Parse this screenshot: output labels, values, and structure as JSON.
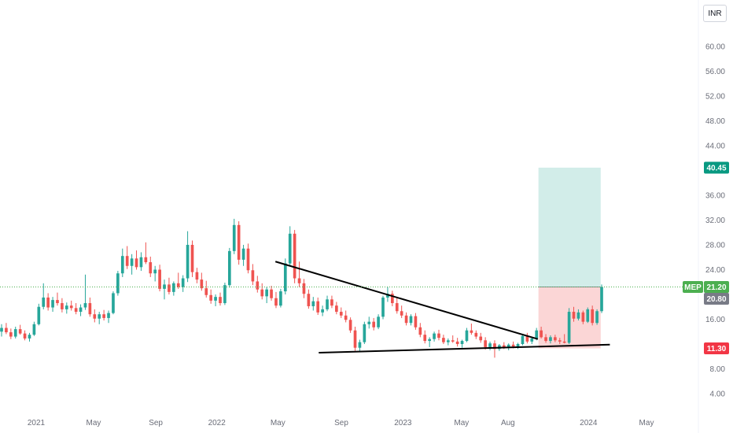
{
  "currency_label": "INR",
  "chart_data": {
    "type": "candlestick",
    "symbol": "MEP",
    "yticks": [
      60,
      56,
      52,
      48,
      44,
      36,
      32,
      28,
      24,
      16,
      8,
      4
    ],
    "ytick_labels": [
      "60.00",
      "56.00",
      "52.00",
      "48.00",
      "44.00",
      "36.00",
      "32.00",
      "28.00",
      "24.00",
      "16.00",
      "8.00",
      "4.00"
    ],
    "xticks": [
      {
        "label": "2021",
        "pos": 0.0
      },
      {
        "label": "May",
        "pos": 0.094
      },
      {
        "label": "Sep",
        "pos": 0.196
      },
      {
        "label": "2022",
        "pos": 0.296
      },
      {
        "label": "May",
        "pos": 0.396
      },
      {
        "label": "Sep",
        "pos": 0.5
      },
      {
        "label": "2023",
        "pos": 0.601
      },
      {
        "label": "May",
        "pos": 0.697
      },
      {
        "label": "Aug",
        "pos": 0.773
      },
      {
        "label": "2024",
        "pos": 0.905
      },
      {
        "label": "May",
        "pos": 1.0
      }
    ],
    "price_series": [
      [
        14.0,
        15.2,
        13.2,
        14.6
      ],
      [
        14.6,
        15.4,
        13.6,
        13.9
      ],
      [
        13.9,
        14.5,
        12.8,
        13.2
      ],
      [
        13.2,
        14.8,
        12.9,
        14.4
      ],
      [
        14.4,
        15.1,
        13.5,
        13.7
      ],
      [
        13.7,
        14.2,
        12.6,
        12.9
      ],
      [
        12.9,
        13.8,
        12.4,
        13.5
      ],
      [
        13.5,
        15.6,
        13.3,
        15.2
      ],
      [
        15.2,
        18.5,
        15.0,
        18.0
      ],
      [
        18.0,
        21.8,
        17.6,
        19.5
      ],
      [
        19.5,
        20.2,
        17.4,
        17.9
      ],
      [
        17.9,
        19.6,
        17.2,
        19.1
      ],
      [
        19.1,
        20.3,
        18.2,
        18.6
      ],
      [
        18.6,
        19.4,
        17.1,
        17.6
      ],
      [
        17.6,
        18.7,
        16.9,
        18.2
      ],
      [
        18.2,
        19.0,
        17.4,
        17.8
      ],
      [
        17.8,
        18.6,
        16.8,
        17.2
      ],
      [
        17.2,
        18.4,
        16.5,
        17.9
      ],
      [
        17.9,
        23.2,
        17.5,
        18.6
      ],
      [
        18.6,
        19.5,
        16.4,
        16.8
      ],
      [
        16.8,
        17.6,
        15.5,
        16.1
      ],
      [
        16.1,
        17.2,
        15.2,
        16.8
      ],
      [
        16.8,
        17.5,
        15.8,
        16.2
      ],
      [
        16.2,
        17.4,
        15.4,
        17.0
      ],
      [
        17.0,
        20.5,
        16.8,
        20.2
      ],
      [
        20.2,
        23.8,
        19.8,
        23.4
      ],
      [
        23.4,
        27.4,
        22.8,
        26.2
      ],
      [
        26.2,
        27.8,
        24.1,
        24.6
      ],
      [
        24.6,
        26.5,
        23.2,
        25.8
      ],
      [
        25.8,
        27.1,
        24.0,
        24.4
      ],
      [
        24.4,
        26.8,
        23.8,
        26.0
      ],
      [
        26.0,
        28.4,
        24.9,
        25.2
      ],
      [
        25.2,
        26.1,
        22.8,
        23.4
      ],
      [
        23.4,
        24.6,
        22.1,
        24.0
      ],
      [
        24.0,
        24.8,
        20.5,
        20.9
      ],
      [
        20.9,
        22.4,
        19.2,
        21.6
      ],
      [
        21.6,
        22.7,
        20.0,
        20.4
      ],
      [
        20.4,
        22.1,
        19.8,
        21.8
      ],
      [
        21.8,
        23.5,
        20.9,
        21.2
      ],
      [
        21.2,
        23.1,
        20.4,
        22.6
      ],
      [
        22.6,
        30.2,
        22.0,
        28.0
      ],
      [
        28.0,
        28.7,
        22.8,
        23.6
      ],
      [
        23.6,
        24.3,
        21.8,
        22.4
      ],
      [
        22.4,
        23.5,
        20.6,
        21.0
      ],
      [
        21.0,
        22.2,
        19.5,
        19.9
      ],
      [
        19.9,
        20.8,
        18.5,
        19.0
      ],
      [
        19.0,
        20.0,
        18.1,
        19.6
      ],
      [
        19.6,
        20.3,
        18.2,
        18.6
      ],
      [
        18.6,
        21.9,
        18.3,
        21.5
      ],
      [
        21.5,
        27.5,
        21.1,
        27.0
      ],
      [
        27.0,
        32.2,
        26.5,
        31.2
      ],
      [
        31.2,
        31.8,
        24.8,
        25.6
      ],
      [
        25.6,
        28.0,
        24.6,
        27.4
      ],
      [
        27.4,
        28.2,
        23.4,
        23.9
      ],
      [
        23.9,
        24.9,
        21.5,
        22.1
      ],
      [
        22.1,
        23.0,
        20.3,
        20.8
      ],
      [
        20.8,
        21.8,
        19.2,
        19.7
      ],
      [
        19.7,
        21.2,
        18.6,
        20.8
      ],
      [
        20.8,
        21.4,
        19.0,
        19.4
      ],
      [
        19.4,
        20.4,
        17.8,
        18.2
      ],
      [
        18.2,
        20.9,
        17.9,
        20.5
      ],
      [
        20.5,
        25.8,
        20.0,
        25.0
      ],
      [
        25.0,
        31.0,
        24.6,
        29.8
      ],
      [
        29.8,
        30.4,
        21.8,
        22.6
      ],
      [
        22.6,
        25.3,
        21.2,
        21.8
      ],
      [
        21.8,
        22.5,
        19.4,
        20.1
      ],
      [
        20.1,
        20.8,
        17.7,
        18.1
      ],
      [
        18.1,
        19.6,
        17.4,
        18.9
      ],
      [
        18.9,
        19.5,
        16.7,
        17.1
      ],
      [
        17.1,
        18.2,
        16.5,
        17.6
      ],
      [
        17.6,
        19.8,
        17.3,
        19.2
      ],
      [
        19.2,
        19.8,
        17.8,
        18.2
      ],
      [
        18.2,
        18.8,
        16.8,
        17.2
      ],
      [
        17.2,
        17.9,
        16.2,
        16.6
      ],
      [
        16.6,
        17.4,
        15.5,
        15.9
      ],
      [
        15.9,
        16.3,
        13.8,
        14.2
      ],
      [
        14.2,
        14.8,
        10.9,
        11.4
      ],
      [
        11.4,
        12.7,
        10.8,
        12.3
      ],
      [
        12.3,
        15.6,
        12.0,
        15.2
      ],
      [
        15.2,
        16.4,
        14.5,
        15.6
      ],
      [
        15.6,
        16.2,
        14.2,
        14.7
      ],
      [
        14.7,
        16.8,
        14.4,
        16.4
      ],
      [
        16.4,
        19.8,
        16.0,
        19.5
      ],
      [
        19.5,
        21.2,
        18.8,
        20.1
      ],
      [
        20.1,
        20.6,
        18.1,
        18.6
      ],
      [
        18.6,
        19.4,
        16.9,
        17.3
      ],
      [
        17.3,
        18.2,
        16.2,
        16.6
      ],
      [
        16.6,
        17.1,
        15.0,
        15.4
      ],
      [
        15.4,
        16.8,
        15.0,
        16.5
      ],
      [
        16.5,
        17.0,
        14.3,
        14.7
      ],
      [
        14.7,
        15.4,
        13.1,
        13.5
      ],
      [
        13.5,
        14.2,
        12.1,
        12.5
      ],
      [
        12.5,
        13.1,
        11.5,
        12.8
      ],
      [
        12.8,
        14.0,
        12.4,
        13.7
      ],
      [
        13.7,
        14.3,
        12.6,
        13.0
      ],
      [
        13.0,
        13.5,
        12.0,
        12.3
      ],
      [
        12.3,
        12.9,
        11.8,
        12.6
      ],
      [
        12.6,
        13.4,
        12.2,
        12.4
      ],
      [
        12.4,
        13.0,
        11.6,
        12.0
      ],
      [
        12.0,
        12.7,
        11.4,
        12.5
      ],
      [
        12.5,
        14.6,
        12.3,
        14.2
      ],
      [
        14.2,
        15.3,
        13.5,
        13.8
      ],
      [
        13.8,
        14.2,
        12.8,
        13.2
      ],
      [
        13.2,
        13.8,
        12.2,
        12.6
      ],
      [
        12.6,
        13.1,
        11.1,
        11.5
      ],
      [
        11.5,
        12.4,
        11.0,
        12.1
      ],
      [
        12.1,
        12.6,
        9.8,
        11.2
      ],
      [
        11.2,
        12.0,
        10.9,
        11.8
      ],
      [
        11.8,
        12.3,
        11.2,
        11.5
      ],
      [
        11.5,
        12.1,
        11.0,
        11.9
      ],
      [
        11.9,
        12.4,
        11.3,
        11.6
      ],
      [
        11.6,
        12.2,
        11.2,
        12.0
      ],
      [
        12.0,
        13.6,
        11.8,
        13.3
      ],
      [
        13.3,
        13.8,
        12.1,
        12.4
      ],
      [
        12.4,
        13.2,
        12.0,
        12.9
      ],
      [
        12.9,
        14.6,
        12.6,
        14.2
      ],
      [
        14.2,
        14.8,
        12.9,
        13.1
      ],
      [
        13.1,
        13.6,
        12.2,
        12.5
      ],
      [
        12.5,
        13.4,
        12.1,
        13.1
      ],
      [
        13.1,
        13.5,
        12.3,
        12.6
      ],
      [
        12.6,
        13.0,
        12.0,
        12.4
      ],
      [
        12.4,
        13.6,
        12.1,
        12.2
      ],
      [
        12.2,
        17.8,
        12.0,
        17.2
      ],
      [
        17.2,
        18.0,
        15.6,
        16.1
      ],
      [
        16.1,
        17.6,
        15.8,
        17.1
      ],
      [
        17.1,
        17.4,
        15.2,
        15.6
      ],
      [
        15.6,
        17.9,
        15.4,
        17.6
      ],
      [
        17.6,
        18.2,
        15.0,
        15.4
      ],
      [
        15.4,
        17.6,
        15.1,
        17.3
      ],
      [
        17.3,
        21.6,
        17.0,
        21.2
      ]
    ],
    "trendlines": [
      {
        "name": "upper-resistance",
        "from": {
          "x": 0.392,
          "y": 25.3
        },
        "to": {
          "x": 0.822,
          "y": 12.8
        }
      },
      {
        "name": "lower-support",
        "from": {
          "x": 0.463,
          "y": 10.6
        },
        "to": {
          "x": 0.94,
          "y": 11.9
        }
      }
    ],
    "position": {
      "entry": 21.2,
      "target": 40.45,
      "stop": 11.3,
      "start_x": 0.823,
      "end_x": 0.925
    },
    "last_price": 21.2,
    "prev_price": 20.8,
    "target_label": "40.45",
    "last_label": "21.20",
    "prev_label": "20.80",
    "stop_label": "11.30",
    "colors": {
      "up": "#26a69a",
      "down": "#ef5350",
      "profit_zone": "#d2ede9",
      "loss_zone": "#fbd6d6",
      "target_badge": "#089981",
      "last_badge": "#4caf50",
      "prev_badge": "#787b86",
      "stop_badge": "#f23645",
      "trendline": "#000000"
    }
  }
}
